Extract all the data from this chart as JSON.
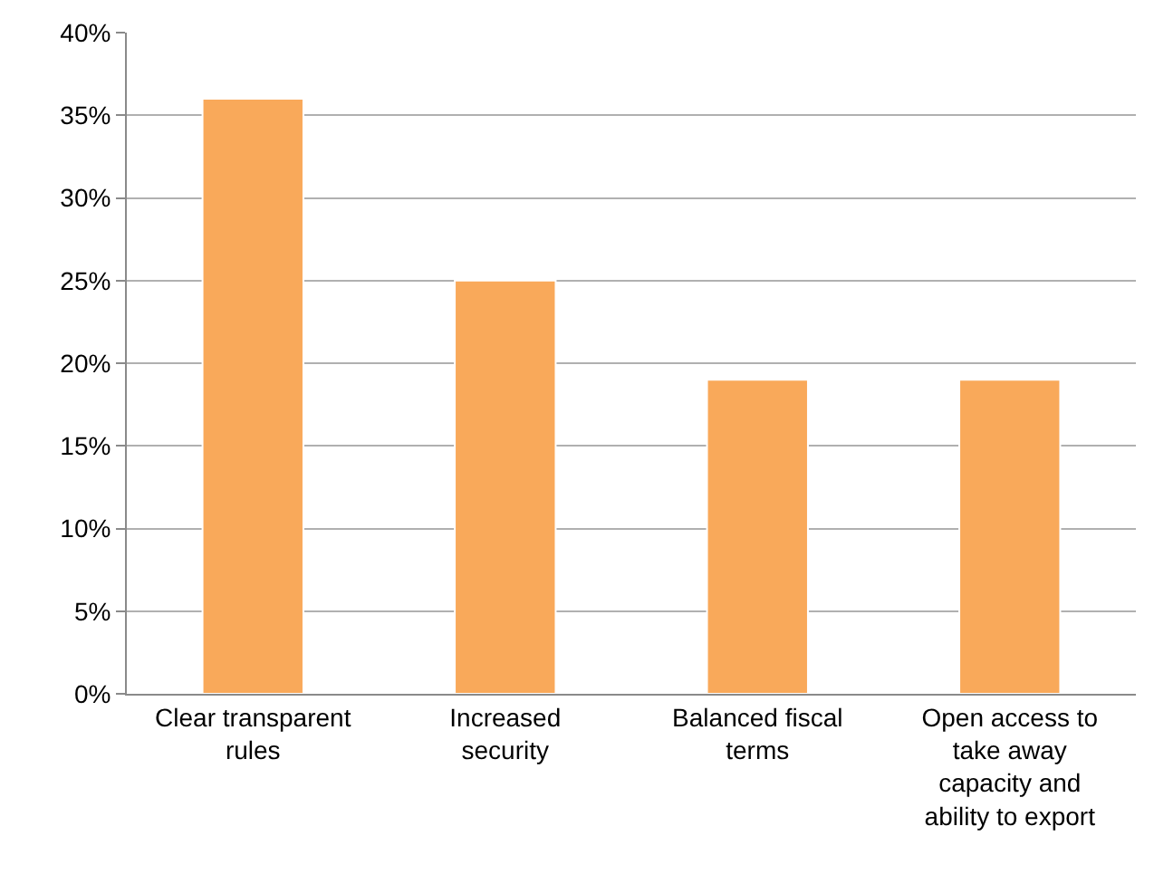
{
  "chart_data": {
    "type": "bar",
    "categories": [
      "Clear transparent rules",
      "Increased security",
      "Balanced fiscal terms",
      "Open access to take away capacity and ability to export"
    ],
    "values": [
      36,
      25,
      19,
      19
    ],
    "color": "#f9a95a",
    "ylim": [
      0,
      40
    ],
    "yticks": [
      {
        "value": 0,
        "label": "0%"
      },
      {
        "value": 5,
        "label": "5%"
      },
      {
        "value": 10,
        "label": "10%"
      },
      {
        "value": 15,
        "label": "15%"
      },
      {
        "value": 20,
        "label": "20%"
      },
      {
        "value": 25,
        "label": "25%"
      },
      {
        "value": 30,
        "label": "30%"
      },
      {
        "value": 35,
        "label": "35%"
      },
      {
        "value": 40,
        "label": "40%"
      }
    ],
    "grid": "y"
  }
}
